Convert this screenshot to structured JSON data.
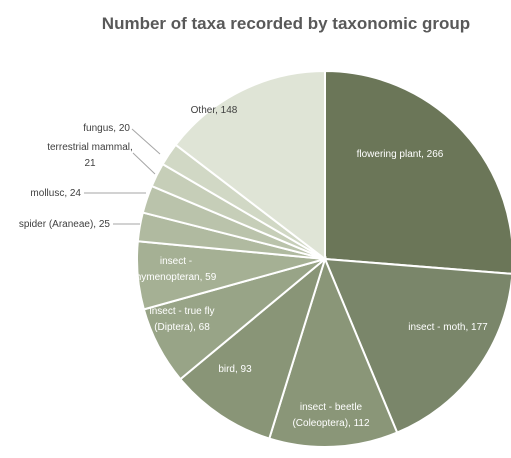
{
  "chart_data": {
    "type": "pie",
    "title": "Number of taxa recorded by taxonomic group",
    "slices": [
      {
        "label": "flowering plant, 266",
        "name": "flowering plant",
        "value": 266,
        "color": "#6b7658"
      },
      {
        "label": "insect - moth, 177",
        "name": "insect - moth",
        "value": 177,
        "color": "#7a866a"
      },
      {
        "label": "insect - beetle (Coleoptera), 112",
        "name": "insect - beetle (Coleoptera)",
        "value": 112,
        "color": "#8a9678"
      },
      {
        "label": "bird, 93",
        "name": "bird",
        "value": 93,
        "color": "#899577"
      },
      {
        "label": "insect - true fly (Diptera), 68",
        "name": "insect - true fly (Diptera)",
        "value": 68,
        "color": "#98a487"
      },
      {
        "label": "insect - hymenopteran, 59",
        "name": "insect - hymenopteran",
        "value": 59,
        "color": "#a5b094"
      },
      {
        "label": "spider (Araneae), 25",
        "name": "spider (Araneae)",
        "value": 25,
        "color": "#b0baa0"
      },
      {
        "label": "mollusc, 24",
        "name": "mollusc",
        "value": 24,
        "color": "#bac3ab"
      },
      {
        "label": "terrestrial mammal, 21",
        "name": "terrestrial mammal",
        "value": 21,
        "color": "#c6ceb8"
      },
      {
        "label": "fungus, 20",
        "name": "fungus",
        "value": 20,
        "color": "#d1d8c5"
      },
      {
        "label": "Other, 148",
        "name": "Other",
        "value": 148,
        "color": "#dfe4d6"
      }
    ],
    "label_color": "#404040",
    "inside_label_color": "#ffffff"
  }
}
